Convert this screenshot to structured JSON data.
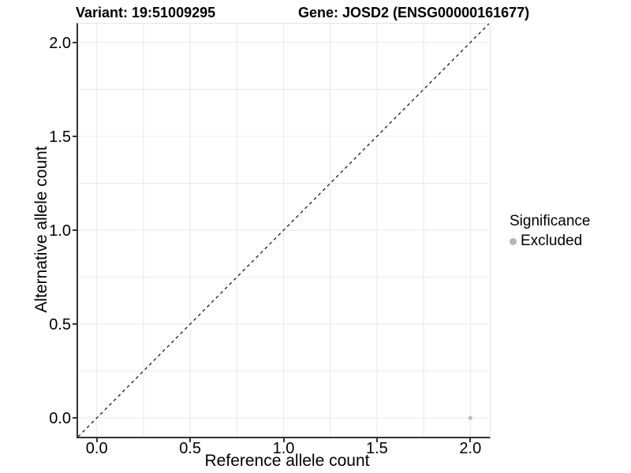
{
  "chart_data": {
    "type": "scatter",
    "title_left": "Variant: 19:51009295",
    "title_right": "Gene: JOSD2 (ENSG00000161677)",
    "xlabel": "Reference allele count",
    "ylabel": "Alternative allele count",
    "xlim": [
      -0.1,
      2.1
    ],
    "ylim": [
      -0.1,
      2.1
    ],
    "x_ticks": [
      0.0,
      0.5,
      1.0,
      1.5,
      2.0
    ],
    "x_tick_labels": [
      "0.0",
      "0.5",
      "1.0",
      "1.5",
      "2.0"
    ],
    "y_ticks": [
      0.0,
      0.5,
      1.0,
      1.5,
      2.0
    ],
    "y_tick_labels": [
      "0.0",
      "0.5",
      "1.0",
      "1.5",
      "2.0"
    ],
    "grid": {
      "on": true,
      "step": 0.25,
      "from": 0.0,
      "to": 2.0,
      "color": "#e9e9e9"
    },
    "identity_line": {
      "from": [
        -0.1,
        -0.1
      ],
      "to": [
        2.1,
        2.1
      ],
      "style": "dashed",
      "color": "#1a1a1a"
    },
    "series": [
      {
        "name": "Excluded",
        "color": "#bdbdbd",
        "points": [
          {
            "x": 2.0,
            "y": 0.0
          }
        ]
      }
    ],
    "legend": {
      "title": "Significance",
      "position": "right",
      "items": [
        {
          "label": "Excluded",
          "color": "#b5b5b5"
        }
      ]
    },
    "colors": {
      "axis_line": "#333333",
      "tick": "#333333",
      "grid": "#e9e9e9",
      "panel_edge": "#e3e3e3",
      "point": "#bdbdbd",
      "text": "#000000"
    }
  }
}
